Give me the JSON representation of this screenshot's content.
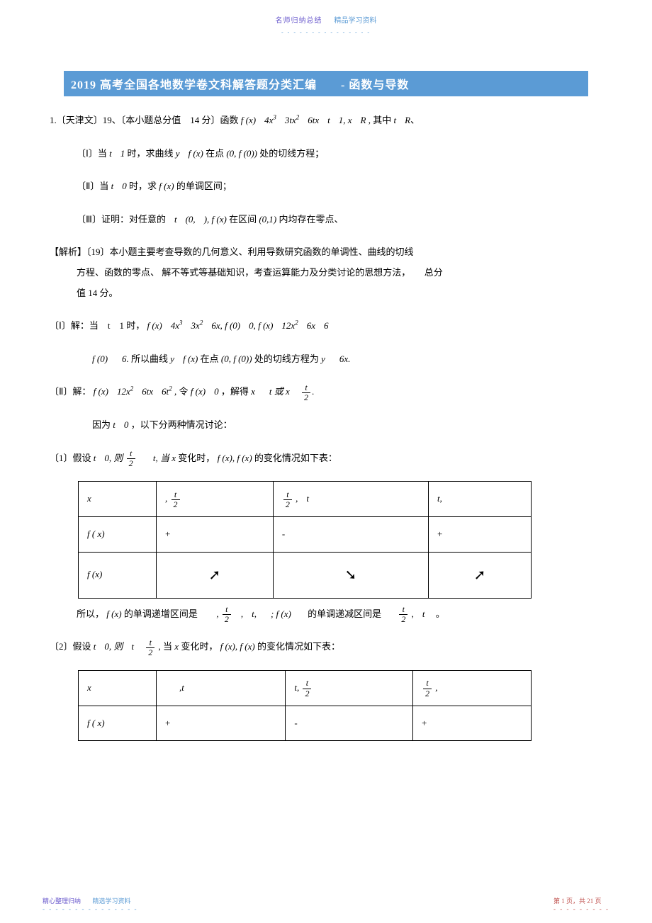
{
  "header": {
    "text1": "名师归纳总结",
    "text2": "精品学习资料",
    "dots": "- - - - - - - - - - - - - - -"
  },
  "title": "2019 高考全国各地数学卷文科解答题分类汇编　　- 函数与导数",
  "q1_intro": "1.〔天津文〕19、〔本小题总分值　14 分〕函数",
  "q1_func": "f (x)　4x³　3tx²　6tx　t　1, x　R ,",
  "q1_tail": "其中 t　R、",
  "part1": "〔Ⅰ〕当　t　1 时，求曲线　y　f (x) 在点 (0, f (0)) 处的切线方程；",
  "part2": "〔Ⅱ〕当　t　0 时，求　f (x) 的单调区间；",
  "part3": "〔Ⅲ〕证明：对任意的　t　(0,　), f (x) 在区间 (0,1) 内均存在零点、",
  "analysis_label": "【解析】〔19〕本小题主要考查导数的几何意义、利用导数研究函数的单调性、曲线的切线",
  "analysis_l2": "方程、函数的零点、 解不等式等基础知识，考查运算能力及分类讨论的思想方法，　　总分",
  "analysis_l3": "值 14 分。",
  "sol1_a": "〔Ⅰ〕解：当　t　1 时，",
  "sol1_b": "f (x)　4x³　3x²　6x, f (0)　0, f (x)　12x²　6x　6",
  "sol1_c": "f (0)　　6. 所以曲线　y　f (x) 在点 (0, f (0)) 处的切线方程为　y　　6x.",
  "sol2_a": "〔Ⅱ〕解：",
  "sol2_b": "f (x)　12x²　6tx　6t² ,",
  "sol2_c": "令 f (x)　0 ,",
  "sol2_d": "解得",
  "sol2_e": "x　　t 或 x",
  "since": "因为 t　0 ，以下分两种情况讨论：",
  "case1_a": "〔1〕假设",
  "case1_b": "t　0, 则",
  "case1_c": "t, 当 x",
  "case1_d": "变化时，",
  "case1_e": "f (x), f (x)",
  "case1_f": "的变化情况如下表：",
  "table1": {
    "r1": [
      "x",
      ",",
      ",　t",
      "t,"
    ],
    "r2": [
      "f ( x)",
      "+",
      "-",
      "+"
    ],
    "r3": [
      "f (x)",
      "↗",
      "↘",
      "↗"
    ]
  },
  "after_t1_a": "所以，",
  "after_t1_b": "f (x)",
  "after_t1_c": "的单调递增区间是",
  "after_t1_d": ",",
  "after_t1_e": ",　t,　　; f (x)",
  "after_t1_f": "的单调递减区间是",
  "after_t1_g": ",　t",
  "after_t1_h": "。",
  "case2_a": "〔2〕假设",
  "case2_b": "t　0, 则　t",
  "case2_c": ", 当 x 变化时，",
  "case2_d": "f (x), f (x)",
  "case2_e": "的变化情况如下表：",
  "table2": {
    "r1": [
      "x",
      ",t",
      "t,",
      ","
    ],
    "r2": [
      "f ( x)",
      "+",
      "-",
      "+"
    ]
  },
  "footer": {
    "left1": "精心整理归纳",
    "left2": "精选学习资料",
    "left_dots": "- - - - - - - - - - - - - - -",
    "right": "第 1 页，共 21 页",
    "right_dots": "- - - - - - - - -"
  },
  "frac_t2": {
    "num": "t",
    "den": "2"
  }
}
